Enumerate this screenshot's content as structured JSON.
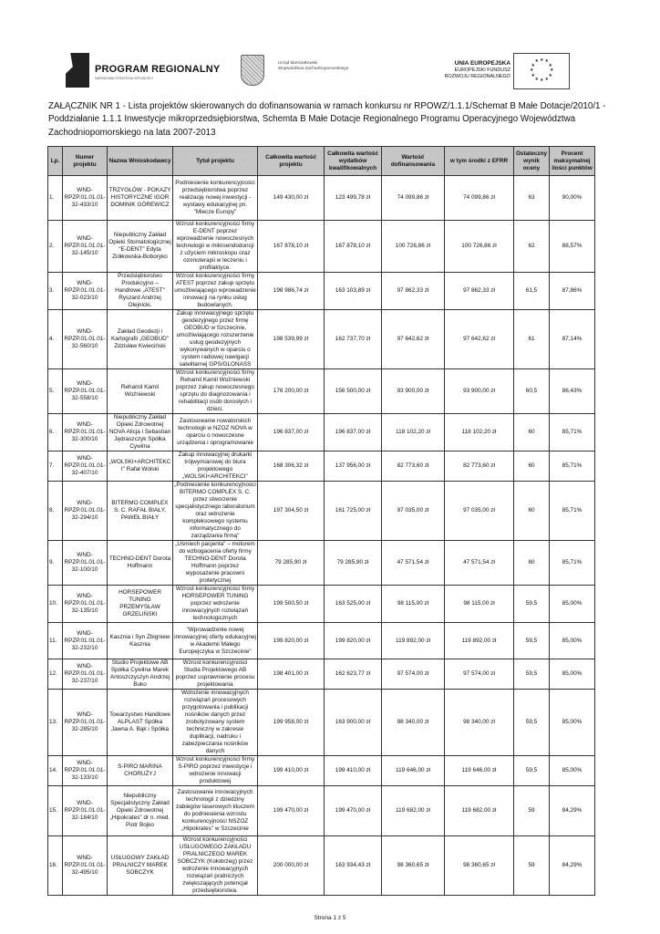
{
  "header": {
    "program_logo_title": "PROGRAM REGIONALNY",
    "program_logo_subtitle": "NARODOWA STRATEGIA SPÓJNOŚCI",
    "office_line1": "Urząd Marszałkowski",
    "office_line2": "Województwa Zachodniopomorskiego",
    "eu_line1": "UNIA EUROPEJSKA",
    "eu_line2": "EUROPEJSKI FUNDUSZ",
    "eu_line3": "ROZWOJU REGIONALNEGO"
  },
  "title": {
    "line1": "ZAŁĄCZNIK NR 1 - Lista projektów skierowanych do dofinansowania w ramach konkursu nr RPOWZ/1.1.1/Schemat B Małe Dotacje/2010/1 -",
    "line2": "Poddziałanie 1.1.1 Inwestycje  mikroprzedsiębiorstwa, Schemta B Małe Dotacje Regionalnego Programu Operacyjnego Województwa",
    "line3": "Zachodniopomorskiego na lata 2007-2013"
  },
  "table": {
    "columns": [
      "Lp.",
      "Numer projektu",
      "Nazwa Wnioskodawcy",
      "Tytuł projektu",
      "Całkowita wartość projektu",
      "Całkowita wartość wydatków kwalifikowalnych",
      "Wartość dofinansowania",
      "w tym środki z EFRR",
      "Ostateczny wynik oceny",
      "Procent maksymalnej ilości punktów"
    ],
    "rows": [
      [
        "1.",
        "WND-RPZP.01.01.01-32-433/10",
        "TRZYGŁÓW - POKAZY HISTORYCZNE IGOR DOMINIK GÓREWICZ",
        "Podniesienie konkurencyjności przedsiębiorstwa poprzez realizację nowej inwestycji - wystawy edukacyjnej pn. \"Miecze Europy\"",
        "149 430,00 zł",
        "123 499,78 zł",
        "74 099,86 zł",
        "74 099,86 zł",
        "63",
        "90,00%"
      ],
      [
        "2.",
        "WND-RPZP.01.01.01-32-145/10",
        "Niepubliczny Zakład Opieki Stomatologicznej \"E-DENT\" Edyta Ziółkowska-Boboryko",
        "Wzrost konkurencyjności firmy E-DENT poprzez wprowadzenie nowoczesnych technologii w mikroendodoncji z użyciem mikroskopu oraz ozonoterapii w leczeniu i profilaktyce.",
        "167 878,10 zł",
        "167 878,10 zł",
        "100 726,86 zł",
        "100 726,86 zł",
        "62",
        "88,57%"
      ],
      [
        "3.",
        "WND-RPZP.01.01.01-32-023/10",
        "Przedsiębiorstwo Produkcyjno – Handlowe „ATEST\" Ryszard Andrzej Olejnicki.",
        "Wzrost konkurencyjności firmy ATEST poprzez zakup sprzętu umożliwiającego wprowadzenie innowacji na rynku usług budowlanych.",
        "198 986,74 zł",
        "163 103,89 zł",
        "97 862,33 zł",
        "97 862,33 zł",
        "61,5",
        "87,86%"
      ],
      [
        "4.",
        "WND-RPZP.01.01.01-32-560/10",
        "Zakład Geodezji i Kartografii „GEOBUD\" Zdzisław Kwieciński",
        "Zakup innowacyjnego sprzętu geodezyjnego przez firmę GEOBUD w Szczecinie, umożliwiającego rozszerzenie usług geodezyjnych wykonywanych w oparciu o system radiowej nawigacji satelitarnej GPS/GLONASS",
        "198 539,99 zł",
        "162 737,70 zł",
        "97 642,62 zł",
        "97 642,62 zł",
        "61",
        "87,14%"
      ],
      [
        "5.",
        "WND-RPZP.01.01.01-32-558/10",
        "Rehamil Kamil Woźniewski",
        "Wzrost konkurencyjności firmy Rehamil Kamil Woźniewski poprzez zakup nowoczesnego sprzętu do diagnozowania i rehabilitacji osób dorosłych i dzieci.",
        "176 200,00 zł",
        "156 500,00 zł",
        "93 900,00 zł",
        "93 900,00 zł",
        "60,5",
        "86,43%"
      ],
      [
        "6.",
        "WND-RPZP.01.01.01-32-300/10",
        "Niepubliczny Zakład Opieki Zdrowotnej NOVA Alicja i Sebastian Jędraszczyk Spółka Cywilna",
        "Zastosowanie nowatorskich technologii w NZOZ NOVA w oparciu o nowoczesne urządzenia i oprogramowanie",
        "196 837,00 zł",
        "196 837,00 zł",
        "118 102,20 zł",
        "118 102,20 zł",
        "60",
        "85,71%"
      ],
      [
        "7.",
        "WND-RPZP.01.01.01-32-407/10",
        "„WOLSKI+ARCHITEKCI\" Rafał Wolski",
        "Zakup innowacyjnej drukarki trójwymiarowej do biura projektowego „WOLSKI+ARCHITEKCI\"",
        "168 306,32 zł",
        "137 956,00 zł",
        "82 773,60 zł",
        "82 773,60 zł",
        "60",
        "85,71%"
      ],
      [
        "8.",
        "WND-RPZP.01.01.01-32-294/10",
        "BITERMO COMPLEX S. C. RAFAŁ BIAŁY, PAWEŁ BIAŁY",
        "„Podniesienie konkurencyjności BITERMO COMPLEX S. C. przez stworzenie specjalistycznego laboratorium oraz wdrożenie kompleksowego systemu informatycznego do zarządzania firmą\"",
        "197 304,50 zł",
        "161 725,00 zł",
        "97 035,00 zł",
        "97 035,00 zł",
        "60",
        "85,71%"
      ],
      [
        "9.",
        "WND-RPZP.01.01.01-32-100/10",
        "TECHNO-DENT Dorota Hoffmann",
        "„Uśmiech pacjenta\" – motorem do wzbogacenia oferty firmy TECHNO-DENT Dorota Hoffmann poprzez wyposażenie pracowni protetycznej",
        "79 285,90 zł",
        "79 285,90 zł",
        "47 571,54 zł",
        "47 571,54 zł",
        "60",
        "85,71%"
      ],
      [
        "10.",
        "WND-RPZP.01.01.01-32-135/10",
        "HORSEPOWER TUNING PRZEMYSŁAW GRZELIŃSKI",
        "Wzrost konkurencyjności firmy HORSEPOWER TUNING poprzez wdrożenie innowacyjnych rozwiązań technologicznych",
        "199 500,50 zł",
        "163 525,00 zł",
        "98 115,00 zł",
        "98 115,00 zł",
        "59,5",
        "85,00%"
      ],
      [
        "11.",
        "WND-RPZP.01.01.01-32-232/10",
        "Kasznia i Syn Zbigniew Kasznia",
        "\"Wprowadzenie nowej innowacyjnej oferty edukacyjnej w Akademii Małego Europejczyka w Szczecinie\"",
        "199 820,00 zł",
        "199 820,00 zł",
        "119 892,00 zł",
        "119 892,00 zł",
        "59,5",
        "85,00%"
      ],
      [
        "12.",
        "WND-RPZP.01.01.01-32-237/10",
        "Studio Projektowe AB Spółka Cywilna Marek Antoszczyszyn Andrzej Buko",
        "Wzrost konkurencyjności Studia Projektowego AB poprzez usprawnienie procesu projektowania",
        "198 401,00 zł",
        "162 623,77 zł",
        "97 574,00 zł",
        "97 574,00 zł",
        "59,5",
        "85,00%"
      ],
      [
        "13.",
        "WND-RPZP.01.01.01-32-285/10",
        "Towarzystwo Handlowe ALPLAST Spółka Jawna A. Bąk i Spółka",
        "Wdrożenie innowacyjnych rozwiązań procesowych przygotowania i publikacji nośników danych przez zrobotyzowany system techniczny w zakresie duplikacji, nadruku i zabezpieczania nośników danych",
        "199 958,00 zł",
        "163 900,00 zł",
        "98 340,00 zł",
        "98 340,00 zł",
        "59,5",
        "85,00%"
      ],
      [
        "14.",
        "WND-RPZP.01.01.01-32-133/10",
        "S-PIRO MARINA CHORUŻYJ",
        "Wzrost konkurencyjności firmy S-PIRO poprzez inwestycje i wdrożenie innowacji produktowej",
        "199 410,00 zł",
        "199 410,00 zł",
        "119 646,00 zł",
        "119 646,00 zł",
        "59,5",
        "85,00%"
      ],
      [
        "15.",
        "WND-RPZP.01.01.01-32-184/10",
        "Niepubliczny Specjalistyczny Zakład Opieki Zdrowotnej „Hipokrates\" dr n. med. Piotr Bojko",
        "Zastosowanie innowacyjnych technologii z dziedziny zabiegów laserowych kluczem do podniesienia wzrostu konkurencyjności NSZOZ „Hipokrates\" w Szczecinie",
        "199 470,00 zł",
        "199 470,00 zł",
        "119 682,00 zł",
        "119 682,00 zł",
        "59",
        "84,29%"
      ],
      [
        "16.",
        "WND-RPZP.01.01.01-32-495/10",
        "USŁUGOWY ZAKŁAD PRALNICZY MAREK SOBCZYK",
        "Wzrost konkurencyjności USŁUGOWEGO ZAKŁADU PRALNICZEGO MAREK SOBCZYK (Kołobrzeg) przez wdrożenie innowacyjnych rozwiązań pralniczych zwiększających potencjał przedsiębiorstwa.",
        "200 000,00 zł",
        "163 934,43 zł",
        "98 360,65 zł",
        "98 360,65 zł",
        "59",
        "84,29%"
      ]
    ]
  },
  "footer": {
    "page": "Strona 1 z 5"
  }
}
